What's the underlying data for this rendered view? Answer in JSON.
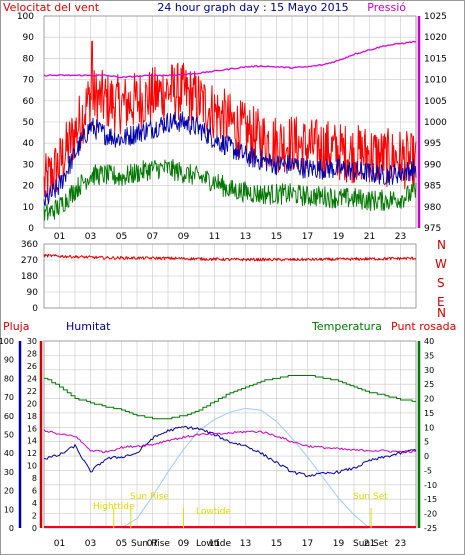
{
  "header": {
    "left_label": "Velocitat del vent",
    "title": "24 hour graph day : 15 Mayo 2015",
    "right_label": "Pressió"
  },
  "compass": [
    "N",
    "W",
    "S",
    "E",
    "N"
  ],
  "legend_bottom": {
    "rain": "Pluja",
    "humidity": "Humitat",
    "temperature": "Temperatura",
    "dewpoint": "Punt rosada"
  },
  "annotations": {
    "high_tide": "Highttide",
    "sun_rise": "Sun Rise",
    "low_tide": "Lowtide",
    "sun_set": "Sun Set",
    "bottom_sun_rise": "Sun Rise",
    "bottom_low_tide": "Lowtide",
    "bottom_sun_set": "Sun Set"
  },
  "colors": {
    "wind_gust": "#ff0000",
    "wind_avg": "#0000aa",
    "wind_low": "#007700",
    "pressure": "#dd00dd",
    "direction": "#dd0000",
    "temperature": "#007700",
    "humidity": "#000099",
    "dewpoint": "#cc00cc",
    "solar": "#99ccff",
    "rain": "#ff0000",
    "annotation": "#dddd00",
    "grid": "#c8c8c8"
  },
  "chart_data": [
    {
      "type": "line",
      "panel": "wind_pressure",
      "x_ticks": [
        "01",
        "03",
        "05",
        "07",
        "09",
        "11",
        "13",
        "15",
        "17",
        "19",
        "21",
        "23"
      ],
      "ylim_left": [
        0,
        100
      ],
      "yticks_left": [
        "0",
        "10",
        "20",
        "30",
        "40",
        "50",
        "60",
        "70",
        "80",
        "90",
        "100"
      ],
      "ylim_right": [
        975,
        1025
      ],
      "yticks_right": [
        "975",
        "980",
        "985",
        "990",
        "995",
        "1000",
        "1005",
        "1010",
        "1015",
        "1020",
        "1025"
      ],
      "x_hours": [
        0,
        1,
        2,
        3,
        4,
        5,
        6,
        7,
        8,
        9,
        10,
        11,
        12,
        13,
        14,
        15,
        16,
        17,
        18,
        19,
        20,
        21,
        22,
        23,
        24
      ],
      "series": [
        {
          "values": [
            20,
            30,
            45,
            62,
            60,
            58,
            60,
            62,
            65,
            64,
            60,
            55,
            50,
            45,
            42,
            40,
            40,
            38,
            38,
            36,
            35,
            35,
            33,
            33,
            30
          ],
          "noise": 14
        },
        {
          "values": [
            12,
            20,
            35,
            48,
            44,
            42,
            45,
            47,
            50,
            50,
            47,
            42,
            38,
            34,
            32,
            30,
            30,
            28,
            28,
            28,
            27,
            26,
            25,
            26,
            28
          ],
          "noise": 5
        },
        {
          "values": [
            6,
            10,
            18,
            25,
            25,
            24,
            26,
            28,
            28,
            26,
            24,
            22,
            18,
            17,
            16,
            16,
            16,
            15,
            15,
            14,
            14,
            13,
            13,
            14,
            17
          ],
          "noise": 5
        },
        {
          "axis": "right",
          "values": [
            1011,
            1011,
            1011,
            1011,
            1011,
            1010.5,
            1010.8,
            1011,
            1011,
            1011.2,
            1011.5,
            1012,
            1012.5,
            1013,
            1013.2,
            1013,
            1012.8,
            1013,
            1013.5,
            1014.5,
            1016,
            1017,
            1018,
            1018.5,
            1019
          ]
        }
      ]
    },
    {
      "type": "line",
      "panel": "wind_direction",
      "ylim": [
        0,
        360
      ],
      "yticks": [
        "0",
        "90",
        "180",
        "270",
        "360"
      ],
      "x_hours": [
        0,
        4,
        8,
        12,
        16,
        20,
        24
      ],
      "series": [
        {
          "values": [
            295,
            282,
            280,
            273,
            272,
            275,
            280
          ],
          "noise": 8
        }
      ]
    },
    {
      "type": "line",
      "panel": "rain_humidity_temperature",
      "ylim_rain": [
        0,
        30
      ],
      "yticks_rain": [
        "0",
        "2",
        "4",
        "6",
        "8",
        "10",
        "12",
        "14",
        "16",
        "18",
        "20",
        "22",
        "24",
        "26",
        "28",
        "30"
      ],
      "ylim_humidity": [
        0,
        100
      ],
      "yticks_humidity": [
        "0",
        "10",
        "20",
        "30",
        "40",
        "50",
        "60",
        "70",
        "80",
        "90",
        "100"
      ],
      "ylim_temperature": [
        -25,
        40
      ],
      "yticks_temperature": [
        "-25",
        "-20",
        "-15",
        "-10",
        "-5",
        "0",
        "5",
        "10",
        "15",
        "20",
        "25",
        "30",
        "35",
        "40"
      ],
      "x_hours": [
        0,
        1,
        2,
        3,
        4,
        5,
        6,
        7,
        8,
        9,
        10,
        11,
        12,
        13,
        14,
        15,
        16,
        17,
        18,
        19,
        20,
        21,
        22,
        23,
        24
      ],
      "series": [
        {
          "axis": "temperature",
          "values": [
            27,
            24,
            20,
            18.5,
            17,
            16,
            14,
            13,
            13,
            14,
            16,
            19,
            22,
            24,
            26,
            27,
            28,
            28,
            27,
            26,
            24,
            22,
            21,
            19.5,
            19
          ]
        },
        {
          "axis": "humidity",
          "values": [
            37,
            39,
            44,
            30,
            37,
            38,
            40,
            48,
            52,
            54,
            53,
            50,
            46,
            44,
            40,
            35,
            30,
            28,
            29,
            30,
            32,
            36,
            38,
            40,
            42
          ]
        },
        {
          "axis": "temperature",
          "values": [
            9,
            7.5,
            7,
            2,
            1.5,
            3,
            3.5,
            4,
            5.5,
            6.5,
            7.5,
            7.5,
            8,
            8.5,
            8.5,
            7,
            5,
            3.5,
            3,
            2.5,
            2,
            2,
            1.8,
            1.5,
            1.5
          ]
        },
        {
          "axis": "humidity",
          "values": [
            0,
            0,
            0,
            0,
            0,
            0,
            5,
            17,
            30,
            42,
            52,
            58,
            62,
            64,
            63,
            57,
            48,
            38,
            27,
            16,
            7,
            0,
            0,
            0,
            0
          ]
        },
        {
          "axis": "rain",
          "values": [
            0,
            0,
            0,
            0,
            0,
            0,
            0,
            0,
            0,
            0,
            0,
            0,
            0,
            0,
            0,
            0,
            0,
            0,
            0,
            0,
            0,
            0,
            0,
            0,
            0
          ]
        }
      ]
    }
  ]
}
